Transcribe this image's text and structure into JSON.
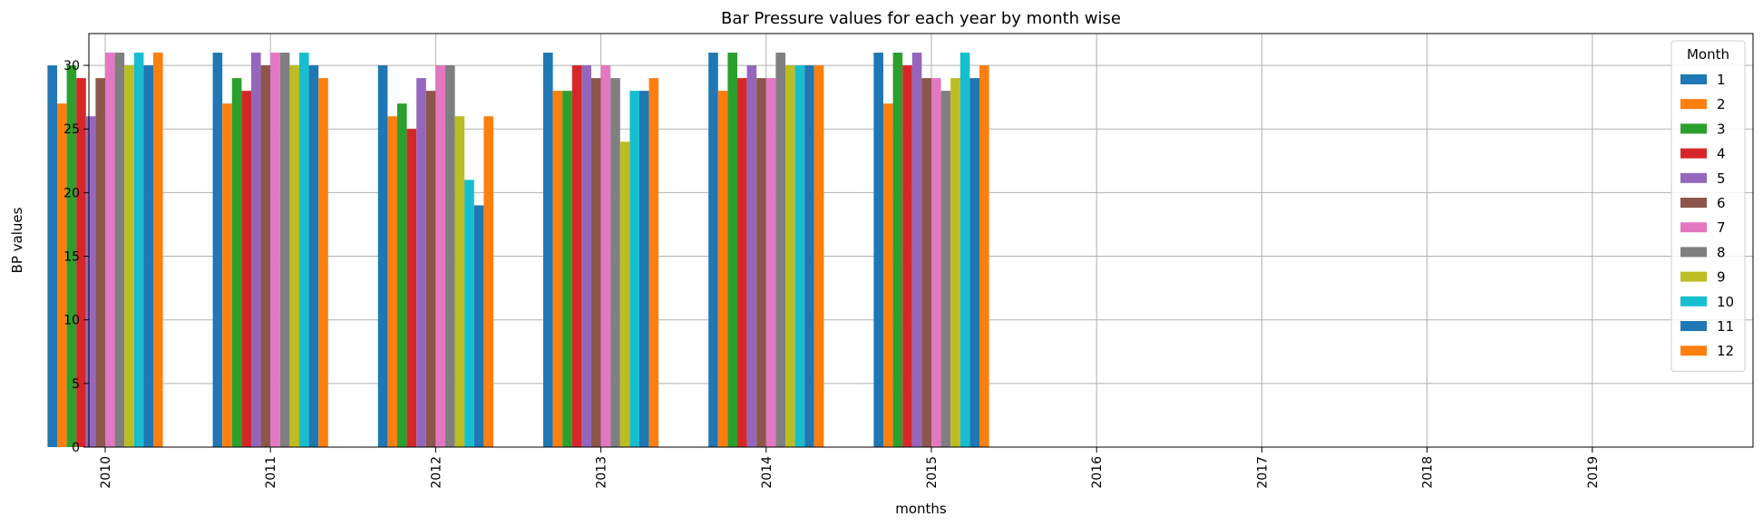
{
  "chart_data": {
    "type": "bar",
    "title": "Bar Pressure values for each year by month wise",
    "xlabel": "months",
    "ylabel": "BP values",
    "categories": [
      "2010",
      "2011",
      "2012",
      "2013",
      "2014",
      "2015",
      "2016",
      "2017",
      "2018",
      "2019"
    ],
    "ylim": [
      0,
      32.5
    ],
    "yticks": [
      0,
      5,
      10,
      15,
      20,
      25,
      30
    ],
    "grid": true,
    "legend": {
      "title": "Month",
      "placement": "top-right"
    },
    "series": [
      {
        "name": "1",
        "color": "#1f77b4",
        "values": [
          30,
          31,
          30,
          31,
          31,
          31,
          null,
          null,
          null,
          null
        ]
      },
      {
        "name": "2",
        "color": "#ff7f0e",
        "values": [
          27,
          27,
          26,
          28,
          28,
          27,
          null,
          null,
          null,
          null
        ]
      },
      {
        "name": "3",
        "color": "#2ca02c",
        "values": [
          30,
          29,
          27,
          28,
          31,
          31,
          null,
          null,
          null,
          null
        ]
      },
      {
        "name": "4",
        "color": "#d62728",
        "values": [
          29,
          28,
          25,
          30,
          29,
          30,
          null,
          null,
          null,
          null
        ]
      },
      {
        "name": "5",
        "color": "#9467bd",
        "values": [
          26,
          31,
          29,
          30,
          30,
          31,
          null,
          null,
          null,
          null
        ]
      },
      {
        "name": "6",
        "color": "#8c564b",
        "values": [
          29,
          30,
          28,
          29,
          29,
          29,
          null,
          null,
          null,
          null
        ]
      },
      {
        "name": "7",
        "color": "#e377c2",
        "values": [
          31,
          31,
          30,
          30,
          29,
          29,
          null,
          null,
          null,
          null
        ]
      },
      {
        "name": "8",
        "color": "#7f7f7f",
        "values": [
          31,
          31,
          30,
          29,
          31,
          28,
          null,
          null,
          null,
          null
        ]
      },
      {
        "name": "9",
        "color": "#bcbd22",
        "values": [
          30,
          30,
          26,
          24,
          30,
          29,
          null,
          null,
          null,
          null
        ]
      },
      {
        "name": "10",
        "color": "#17becf",
        "values": [
          31,
          31,
          21,
          28,
          30,
          31,
          null,
          null,
          null,
          null
        ]
      },
      {
        "name": "11",
        "color": "#1f77b4",
        "values": [
          30,
          30,
          19,
          28,
          30,
          29,
          null,
          null,
          null,
          null
        ]
      },
      {
        "name": "12",
        "color": "#ff7f0e",
        "values": [
          31,
          29,
          26,
          29,
          30,
          30,
          null,
          null,
          null,
          null
        ]
      }
    ]
  }
}
